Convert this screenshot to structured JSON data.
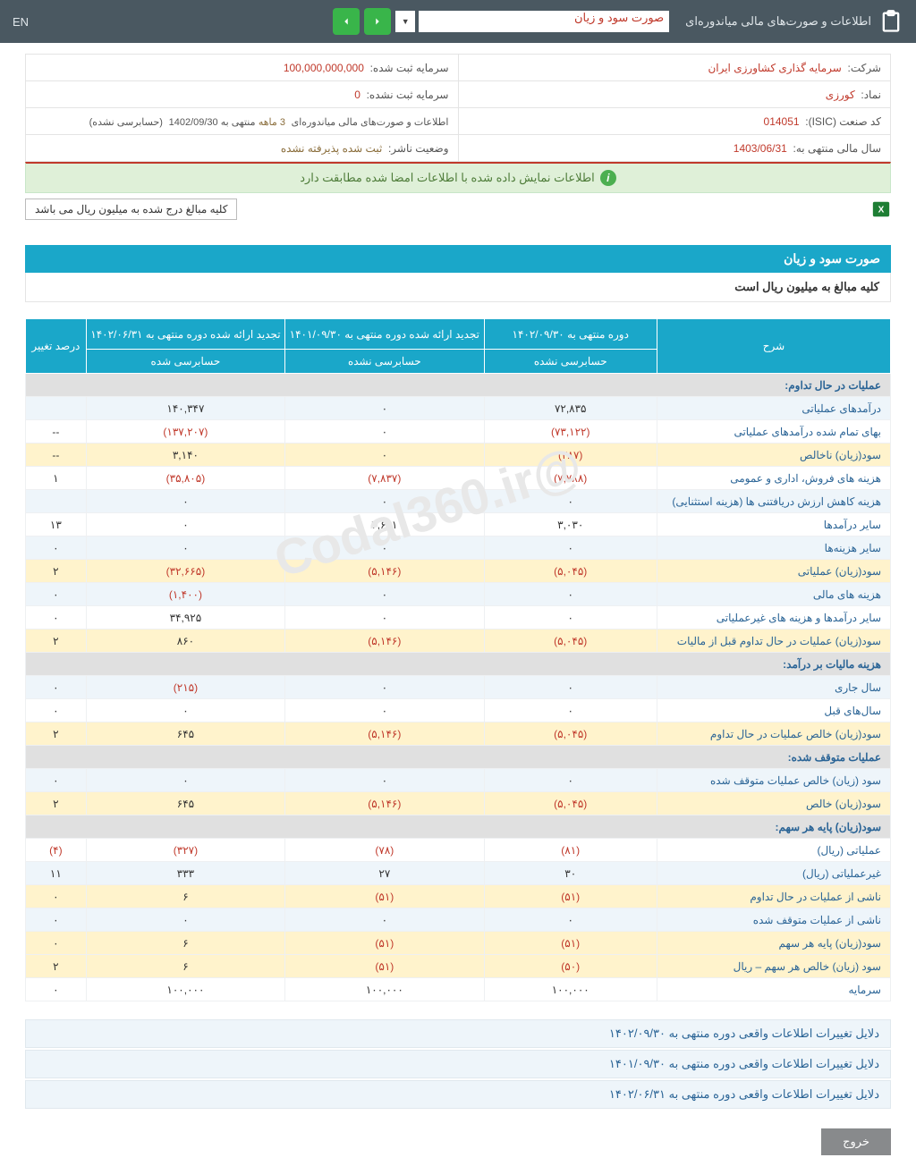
{
  "topbar": {
    "title": "اطلاعات و صورت‌های مالی میاندوره‌ای",
    "select": "صورت سود و زیان",
    "lang": "EN"
  },
  "meta": {
    "company_label": "شرکت:",
    "company_value": "سرمایه گذاری کشاورزی ایران",
    "capital_label": "سرمایه ثبت شده:",
    "capital_value": "100,000,000,000",
    "symbol_label": "نماد:",
    "symbol_value": "کورزی",
    "unreg_label": "سرمایه ثبت نشده:",
    "unreg_value": "0",
    "isic_label": "کد صنعت (ISIC):",
    "isic_value": "014051",
    "period_label": "اطلاعات و صورت‌های مالی میاندوره‌ای",
    "period_months": "3 ماهه",
    "period_end": "منتهی به 1402/09/30",
    "period_audit": "(حسابرسی نشده)",
    "year_label": "سال مالی منتهی به:",
    "year_value": "1403/06/31",
    "status_label": "وضعیت ناشر:",
    "status_value": "ثبت شده پذیرفته نشده"
  },
  "banner": "اطلاعات نمایش داده شده با اطلاعات امضا شده مطابقت دارد",
  "note": "کلیه مبالغ درج شده به میلیون ریال می باشد",
  "section": {
    "title": "صورت سود و زیان",
    "subtitle": "کلیه مبالغ به میلیون ریال است"
  },
  "headers": {
    "desc": "شرح",
    "c1": "دوره منتهی به ۱۴۰۲/۰۹/۳۰",
    "c1s": "حسابرسی نشده",
    "c2": "تجدید ارائه شده دوره منتهی به ۱۴۰۱/۰۹/۳۰",
    "c2s": "حسابرسی نشده",
    "c3": "تجدید ارائه شده دوره منتهی به ۱۴۰۲/۰۶/۳۱",
    "c3s": "حسابرسی شده",
    "c4": "درصد تغییر"
  },
  "rows": [
    {
      "t": "hdr",
      "d": "عملیات در حال تداوم:"
    },
    {
      "t": "alt",
      "d": "درآمدهای عملیاتی",
      "v": [
        "۷۲,۸۳۵",
        "۰",
        "۱۴۰,۳۴۷",
        ""
      ]
    },
    {
      "t": "",
      "d": "بهای تمام شده درآمدهای عملیاتی",
      "v": [
        "(۷۳,۱۲۲)",
        "۰",
        "(۱۳۷,۲۰۷)",
        "--"
      ],
      "neg": [
        0,
        2
      ]
    },
    {
      "t": "yel",
      "d": "سود(زیان) ناخالص",
      "v": [
        "(۲۸۷)",
        "۰",
        "۳,۱۴۰",
        "--"
      ],
      "neg": [
        0
      ]
    },
    {
      "t": "",
      "d": "هزینه های فروش، اداری و عمومی",
      "v": [
        "(۷,۷۸۸)",
        "(۷,۸۳۷)",
        "(۳۵,۸۰۵)",
        "۱"
      ],
      "neg": [
        0,
        1,
        2
      ]
    },
    {
      "t": "alt",
      "d": "هزینه کاهش ارزش دریافتنی ها (هزینه استثنایی)",
      "v": [
        "۰",
        "۰",
        "۰",
        ""
      ]
    },
    {
      "t": "",
      "d": "سایر درآمدها",
      "v": [
        "۳,۰۳۰",
        "۲,۶۹۱",
        "۰",
        "۱۳"
      ]
    },
    {
      "t": "alt",
      "d": "سایر هزینه‌ها",
      "v": [
        "۰",
        "۰",
        "۰",
        "۰"
      ]
    },
    {
      "t": "yel",
      "d": "سود(زیان) عملیاتی",
      "v": [
        "(۵,۰۴۵)",
        "(۵,۱۴۶)",
        "(۳۲,۶۶۵)",
        "۲"
      ],
      "neg": [
        0,
        1,
        2
      ]
    },
    {
      "t": "alt",
      "d": "هزینه های مالی",
      "v": [
        "۰",
        "۰",
        "(۱,۴۰۰)",
        "۰"
      ],
      "neg": [
        2
      ]
    },
    {
      "t": "",
      "d": "سایر درآمدها و هزینه های غیرعملیاتی",
      "v": [
        "۰",
        "۰",
        "۳۴,۹۲۵",
        "۰"
      ]
    },
    {
      "t": "yel",
      "d": "سود(زیان) عملیات در حال تداوم قبل از مالیات",
      "v": [
        "(۵,۰۴۵)",
        "(۵,۱۴۶)",
        "۸۶۰",
        "۲"
      ],
      "neg": [
        0,
        1
      ]
    },
    {
      "t": "hdr",
      "d": "هزینه مالیات بر درآمد:"
    },
    {
      "t": "alt",
      "d": "سال جاری",
      "v": [
        "۰",
        "۰",
        "(۲۱۵)",
        "۰"
      ],
      "neg": [
        2
      ]
    },
    {
      "t": "",
      "d": "سال‌های قبل",
      "v": [
        "۰",
        "۰",
        "۰",
        "۰"
      ]
    },
    {
      "t": "yel",
      "d": "سود(زیان) خالص عملیات در حال تداوم",
      "v": [
        "(۵,۰۴۵)",
        "(۵,۱۴۶)",
        "۶۴۵",
        "۲"
      ],
      "neg": [
        0,
        1
      ]
    },
    {
      "t": "hdr",
      "d": "عملیات متوقف شده:"
    },
    {
      "t": "alt",
      "d": "سود (زیان) خالص عملیات متوقف شده",
      "v": [
        "۰",
        "۰",
        "۰",
        "۰"
      ]
    },
    {
      "t": "yel",
      "d": "سود(زیان) خالص",
      "v": [
        "(۵,۰۴۵)",
        "(۵,۱۴۶)",
        "۶۴۵",
        "۲"
      ],
      "neg": [
        0,
        1
      ]
    },
    {
      "t": "hdr",
      "d": "سود(زیان) پایه هر سهم:"
    },
    {
      "t": "",
      "d": "عملیاتی (ریال)",
      "v": [
        "(۸۱)",
        "(۷۸)",
        "(۳۲۷)",
        "(۴)"
      ],
      "neg": [
        0,
        1,
        2,
        3
      ]
    },
    {
      "t": "alt",
      "d": "غیرعملیاتی (ریال)",
      "v": [
        "۳۰",
        "۲۷",
        "۳۳۳",
        "۱۱"
      ]
    },
    {
      "t": "yel",
      "d": "ناشی از عملیات در حال تداوم",
      "v": [
        "(۵۱)",
        "(۵۱)",
        "۶",
        "۰"
      ],
      "neg": [
        0,
        1
      ]
    },
    {
      "t": "alt",
      "d": "ناشی از عملیات متوقف شده",
      "v": [
        "۰",
        "۰",
        "۰",
        "۰"
      ]
    },
    {
      "t": "yel",
      "d": "سود(زیان) پایه هر سهم",
      "v": [
        "(۵۱)",
        "(۵۱)",
        "۶",
        "۰"
      ],
      "neg": [
        0,
        1
      ]
    },
    {
      "t": "yel",
      "d": "سود (زیان) خالص هر سهم – ریال",
      "v": [
        "(۵۰)",
        "(۵۱)",
        "۶",
        "۲"
      ],
      "neg": [
        0,
        1
      ]
    },
    {
      "t": "",
      "d": "سرمایه",
      "v": [
        "۱۰۰,۰۰۰",
        "۱۰۰,۰۰۰",
        "۱۰۰,۰۰۰",
        "۰"
      ]
    }
  ],
  "reasons": [
    "دلایل تغییرات اطلاعات واقعی دوره منتهی به ۱۴۰۲/۰۹/۳۰",
    "دلایل تغییرات اطلاعات واقعی دوره منتهی به ۱۴۰۱/۰۹/۳۰",
    "دلایل تغییرات اطلاعات واقعی دوره منتهی به ۱۴۰۲/۰۶/۳۱"
  ],
  "exit": "خروج",
  "watermark": "@Codal360.ir"
}
